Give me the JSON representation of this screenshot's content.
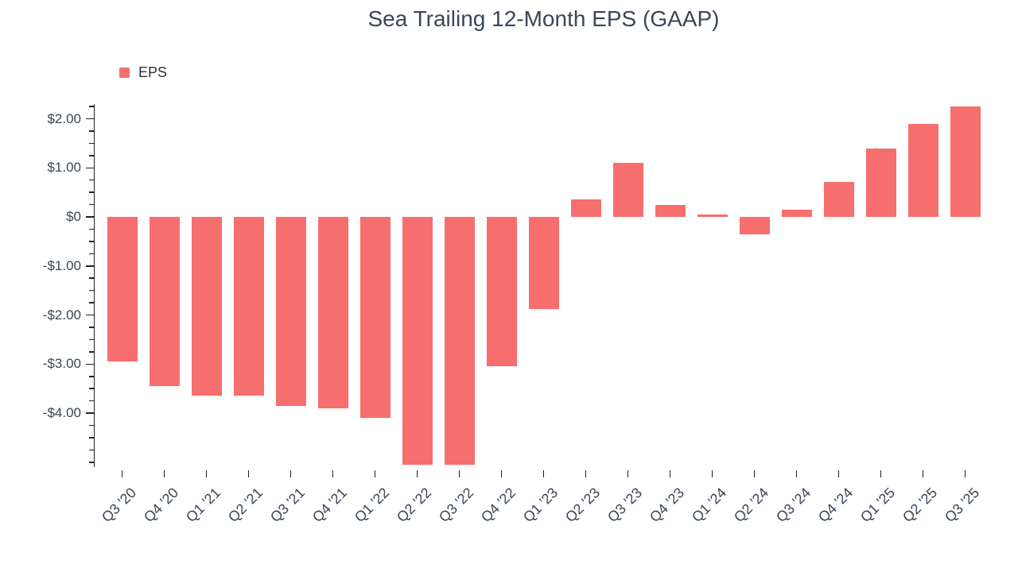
{
  "title": "Sea Trailing 12-Month EPS (GAAP)",
  "legend": {
    "label": "EPS"
  },
  "colors": {
    "bar": "#F76E6E",
    "text": "#3B4656",
    "axis": "#222222",
    "legend_text": "#333333",
    "background": "#FFFFFF"
  },
  "chart_data": {
    "type": "bar",
    "title": "Sea Trailing 12-Month EPS (GAAP)",
    "legend": [
      "EPS"
    ],
    "legend_position": "top-left",
    "grid": false,
    "xlabel": "",
    "ylabel": "",
    "categories": [
      "Q3 '20",
      "Q4 '20",
      "Q1 '21",
      "Q2 '21",
      "Q3 '21",
      "Q4 '21",
      "Q1 '22",
      "Q2 '22",
      "Q3 '22",
      "Q4 '22",
      "Q1 '23",
      "Q2 '23",
      "Q3 '23",
      "Q4 '23",
      "Q1 '24",
      "Q2 '24",
      "Q3 '24",
      "Q4 '24",
      "Q1 '25",
      "Q2 '25",
      "Q3 '25"
    ],
    "values": [
      -2.95,
      -3.45,
      -3.65,
      -3.65,
      -3.85,
      -3.9,
      -4.1,
      -5.05,
      -5.05,
      -3.05,
      -1.87,
      0.35,
      1.1,
      0.25,
      0.05,
      -0.35,
      0.15,
      0.72,
      1.4,
      1.9,
      2.25
    ],
    "ylim": [
      -5.1,
      2.3
    ],
    "y_major_ticks": [
      2,
      1,
      0,
      -1,
      -2,
      -3,
      -4
    ],
    "y_tick_labels": [
      "$2.00",
      "$1.00",
      "$0",
      "-$1.00",
      "-$2.00",
      "-$3.00",
      "-$4.00"
    ],
    "y_minor_range": [
      -5.0,
      2.25
    ],
    "y_minor_step": 0.25
  }
}
